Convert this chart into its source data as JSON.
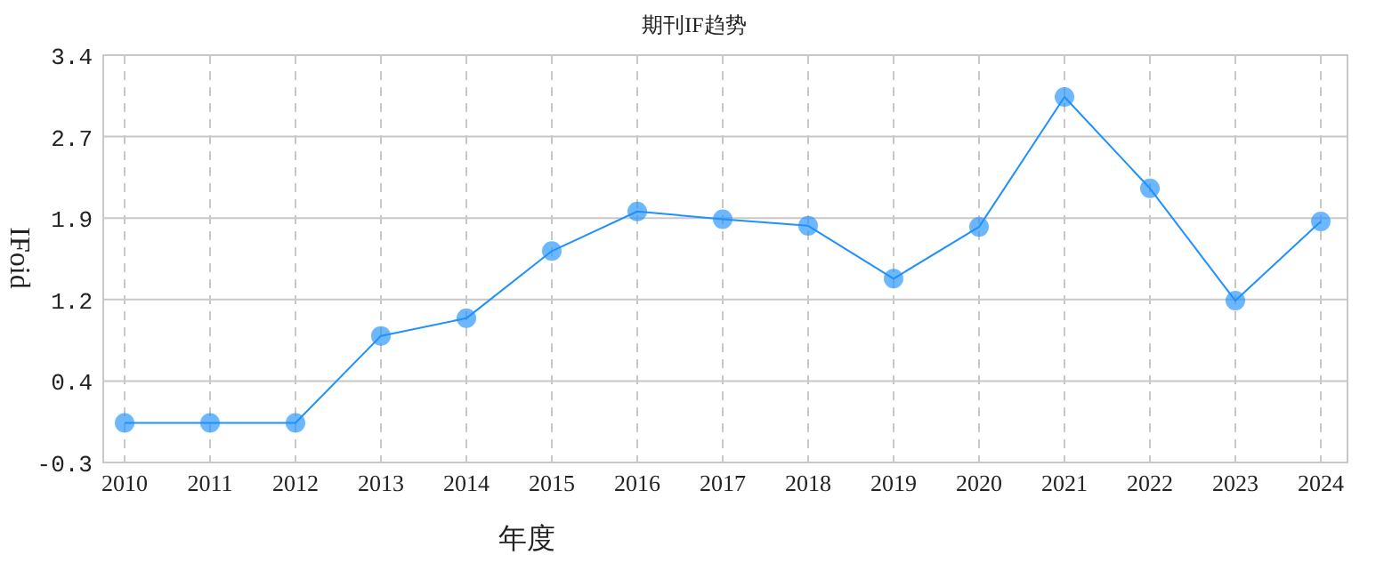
{
  "chart_data": {
    "type": "line",
    "title": "期刊IF趋势",
    "xlabel": "年度",
    "ylabel": "IFoid",
    "categories": [
      "2010",
      "2011",
      "2012",
      "2013",
      "2014",
      "2015",
      "2016",
      "2017",
      "2018",
      "2019",
      "2020",
      "2021",
      "2022",
      "2023",
      "2024"
    ],
    "series": [
      {
        "color": "#1e90ff",
        "values": [
          0.06,
          0.06,
          0.06,
          0.85,
          1.01,
          1.62,
          1.98,
          1.91,
          1.85,
          1.37,
          1.84,
          3.02,
          2.19,
          1.17,
          1.89
        ]
      }
    ],
    "ylim": [
      -0.3,
      3.4
    ],
    "yticks": [
      {
        "value": -0.3,
        "label": "-0.3"
      },
      {
        "value": 0.44,
        "label": "0.4"
      },
      {
        "value": 1.18,
        "label": "1.2"
      },
      {
        "value": 1.92,
        "label": "1.9"
      },
      {
        "value": 2.66,
        "label": "2.7"
      },
      {
        "value": 3.4,
        "label": "3.4"
      }
    ],
    "grid": true,
    "marker": "circle",
    "line_style": "solid"
  }
}
